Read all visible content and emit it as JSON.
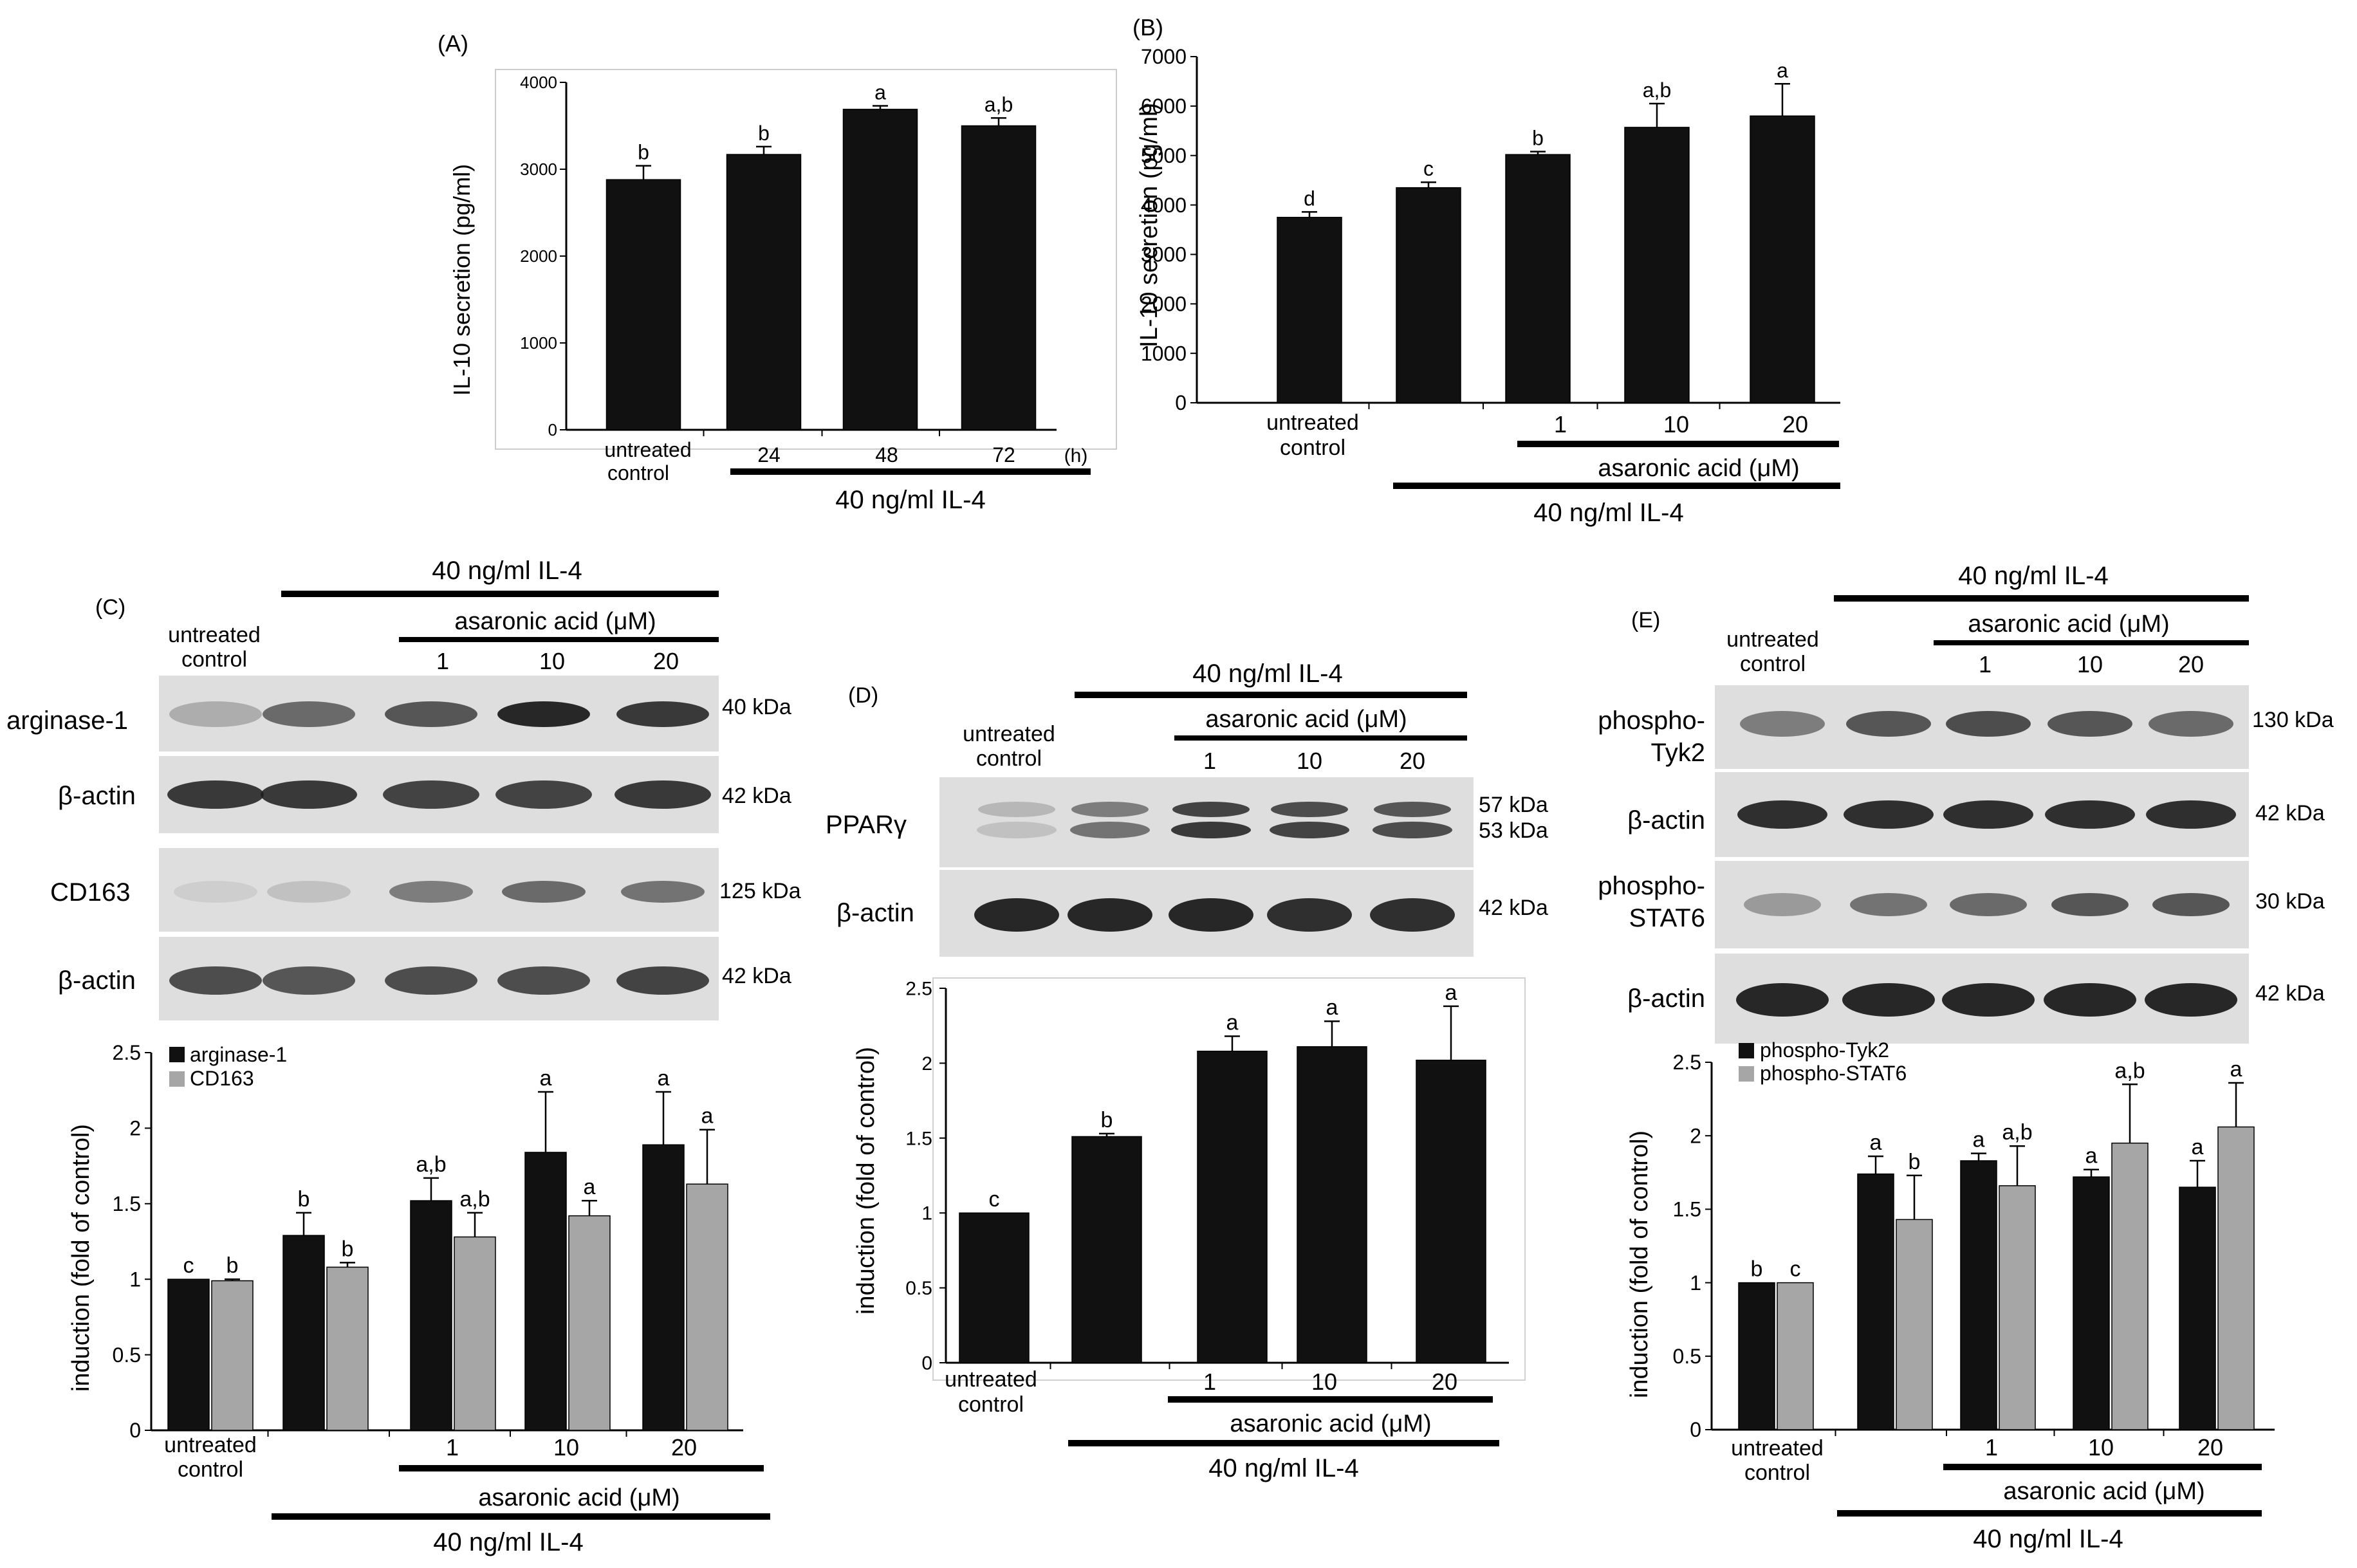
{
  "colors": {
    "black_bar": "#111111",
    "gray_bar": "#a6a6a6",
    "blot_bg": "#dedede",
    "band": "#1c1c1c"
  },
  "common": {
    "untreated_l1": "untreated",
    "untreated_l2": "control",
    "il4": "40 ng/ml IL-4",
    "asaronic": "asaronic acid (μM)",
    "c1": "1",
    "c10": "10",
    "c20": "20",
    "kda40": "40 kDa",
    "kda42": "42 kDa",
    "kda125": "125 kDa",
    "kda57": "57 kDa",
    "kda53": "53 kDa",
    "kda130": "130 kDa",
    "kda30": "30 kDa",
    "actin": "β-actin"
  },
  "panelA": {
    "label": "(A)",
    "ylabel": "IL-10 secretion (pg/ml)",
    "hours": [
      "24",
      "48",
      "72"
    ],
    "h_unit": "(h)"
  },
  "panelB": {
    "label": "(B)",
    "ylabel": "IL-10 secretion (pg/ml)"
  },
  "panelC": {
    "label": "(C)",
    "blot_arginase": "arginase-1",
    "blot_cd163": "CD163",
    "ylabel": "induction (fold of control)",
    "legend": [
      "arginase-1",
      "CD163"
    ]
  },
  "panelD": {
    "label": "(D)",
    "blot_ppar": "PPARγ",
    "ylabel": "induction (fold of control)"
  },
  "panelE": {
    "label": "(E)",
    "blot_tyk2_l1": "phospho-",
    "blot_tyk2_l2": "Tyk2",
    "blot_stat6_l1": "phospho-",
    "blot_stat6_l2": "STAT6",
    "ylabel": "induction (fold of control)",
    "legend": [
      "phospho-Tyk2",
      "phospho-STAT6"
    ]
  },
  "chart_data": [
    {
      "id": "A",
      "type": "bar",
      "title": "(A)",
      "ylabel": "IL-10 secretion (pg/ml)",
      "xlabel": "40 ng/ml IL-4",
      "categories": [
        "untreated control",
        "24",
        "48",
        "72"
      ],
      "ylim": [
        0,
        4000
      ],
      "yticks": [
        "0",
        "1000",
        "2000",
        "3000",
        "4000"
      ],
      "series": [
        {
          "name": "IL-10",
          "values": [
            2880,
            3170,
            3690,
            3500
          ],
          "errors": [
            160,
            90,
            40,
            90
          ],
          "letters": [
            "b",
            "b",
            "a",
            "a,b"
          ]
        }
      ]
    },
    {
      "id": "B",
      "type": "bar",
      "title": "(B)",
      "ylabel": "IL-10 secretion (pg/ml)",
      "xlabel": "40 ng/ml IL-4",
      "categories": [
        "untreated control",
        "IL-4",
        "1",
        "10",
        "20"
      ],
      "ylim": [
        0,
        7000
      ],
      "yticks": [
        "0",
        "1000",
        "2000",
        "3000",
        "4000",
        "5000",
        "6000",
        "7000"
      ],
      "series": [
        {
          "name": "IL-10",
          "values": [
            3750,
            4350,
            5020,
            5570,
            5800
          ],
          "errors": [
            110,
            110,
            60,
            480,
            650
          ],
          "letters": [
            "d",
            "c",
            "b",
            "a,b",
            "a"
          ]
        }
      ]
    },
    {
      "id": "C",
      "type": "bar",
      "title": "(C)",
      "ylabel": "induction (fold of control)",
      "categories": [
        "untreated control",
        "IL-4",
        "1",
        "10",
        "20"
      ],
      "ylim": [
        0,
        2.5
      ],
      "yticks": [
        "0",
        "0.5",
        "1",
        "1.5",
        "2",
        "2.5"
      ],
      "series": [
        {
          "name": "arginase-1",
          "values": [
            1.0,
            1.29,
            1.52,
            1.84,
            1.89
          ],
          "errors": [
            0.0,
            0.15,
            0.15,
            0.4,
            0.35
          ],
          "letters": [
            "c",
            "b",
            "a,b",
            "a",
            "a"
          ]
        },
        {
          "name": "CD163",
          "values": [
            0.99,
            1.08,
            1.28,
            1.42,
            1.63
          ],
          "errors": [
            0.01,
            0.03,
            0.16,
            0.1,
            0.36
          ],
          "letters": [
            "b",
            "b",
            "a,b",
            "a",
            "a"
          ]
        }
      ]
    },
    {
      "id": "D",
      "type": "bar",
      "title": "(D)",
      "ylabel": "induction (fold of control)",
      "categories": [
        "untreated control",
        "IL-4",
        "1",
        "10",
        "20"
      ],
      "ylim": [
        0,
        2.5
      ],
      "yticks": [
        "0",
        "0.5",
        "1",
        "1.5",
        "2",
        "2.5"
      ],
      "series": [
        {
          "name": "PPARγ",
          "values": [
            1.0,
            1.51,
            2.08,
            2.11,
            2.02
          ],
          "errors": [
            0.0,
            0.02,
            0.1,
            0.17,
            0.36
          ],
          "letters": [
            "c",
            "b",
            "a",
            "a",
            "a"
          ]
        }
      ]
    },
    {
      "id": "E",
      "type": "bar",
      "title": "(E)",
      "ylabel": "induction (fold of control)",
      "categories": [
        "untreated control",
        "IL-4",
        "1",
        "10",
        "20"
      ],
      "ylim": [
        0,
        2.5
      ],
      "yticks": [
        "0",
        "0.5",
        "1",
        "1.5",
        "2",
        "2.5"
      ],
      "series": [
        {
          "name": "phospho-Tyk2",
          "values": [
            1.0,
            1.74,
            1.83,
            1.72,
            1.65
          ],
          "errors": [
            0.0,
            0.12,
            0.05,
            0.05,
            0.18
          ],
          "letters": [
            "b",
            "a",
            "a",
            "a",
            "a"
          ]
        },
        {
          "name": "phospho-STAT6",
          "values": [
            1.0,
            1.43,
            1.66,
            1.95,
            2.06
          ],
          "errors": [
            0.0,
            0.3,
            0.27,
            0.4,
            0.3
          ],
          "letters": [
            "c",
            "b",
            "a,b",
            "a,b",
            "a"
          ]
        }
      ]
    }
  ]
}
